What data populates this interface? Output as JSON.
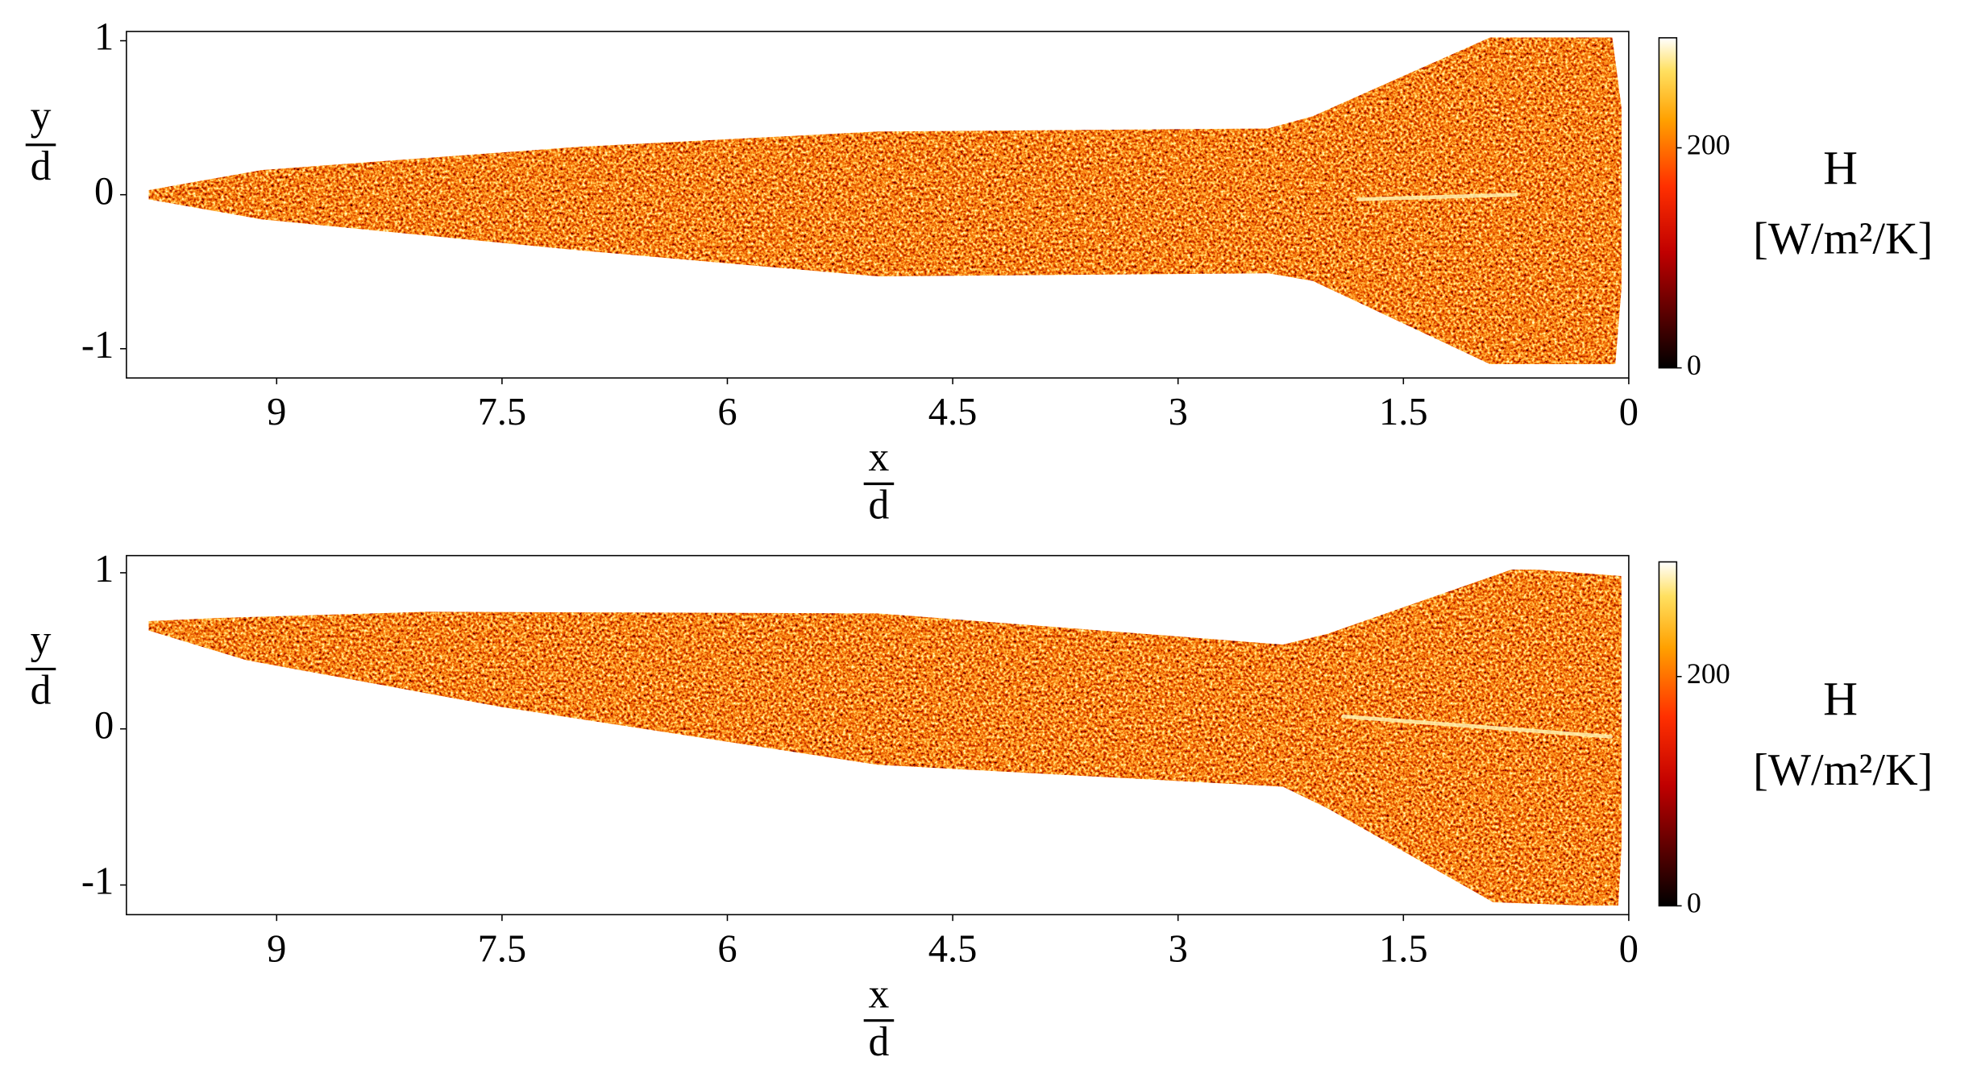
{
  "chart_data": [
    {
      "type": "heatmap",
      "xlabel": {
        "numerator": "x",
        "denominator": "d"
      },
      "ylabel": {
        "numerator": "y",
        "denominator": "d"
      },
      "xlim": [
        10,
        0
      ],
      "ylim": [
        -1.19,
        1.06
      ],
      "xticks": [
        9,
        7.5,
        6,
        4.5,
        3,
        1.5,
        0
      ],
      "yticks": [
        -1,
        0,
        1
      ],
      "colormap": "hot",
      "colorbar": {
        "label": "H",
        "unit": "[W/m²/K]",
        "lim": [
          0,
          300
        ],
        "ticks": [
          0,
          200
        ]
      }
    },
    {
      "type": "heatmap",
      "xlabel": {
        "numerator": "x",
        "denominator": "d"
      },
      "ylabel": {
        "numerator": "y",
        "denominator": "d"
      },
      "xlim": [
        10,
        0
      ],
      "ylim": [
        -1.19,
        1.11
      ],
      "xticks": [
        9,
        7.5,
        6,
        4.5,
        3,
        1.5,
        0
      ],
      "yticks": [
        -1,
        0,
        1
      ],
      "colormap": "hot",
      "colorbar": {
        "label": "H",
        "unit": "[W/m²/K]",
        "lim": [
          0,
          300
        ],
        "ticks": [
          0,
          200
        ]
      }
    }
  ]
}
